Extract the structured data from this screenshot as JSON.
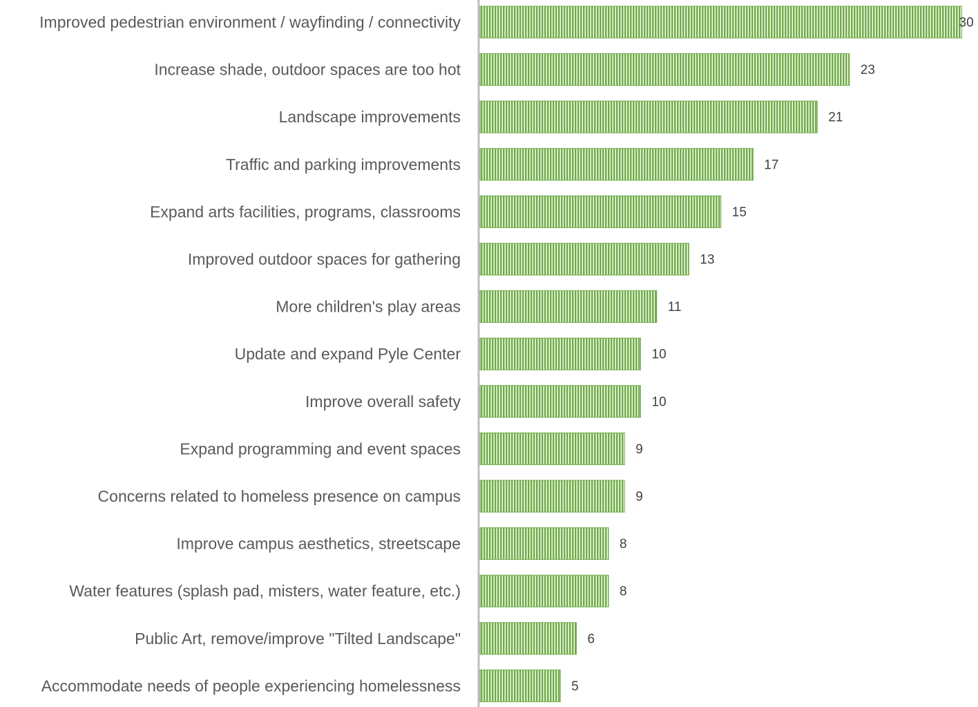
{
  "chart_data": {
    "type": "bar",
    "orientation": "horizontal",
    "title": "",
    "xlabel": "",
    "ylabel": "",
    "xlim": [
      0,
      30
    ],
    "grid": false,
    "legend": "none",
    "bar_color": "#70ad47",
    "bar_pattern": "vertical-stripes",
    "categories": [
      "Improved pedestrian environment / wayfinding / connectivity",
      "Increase shade, outdoor spaces are too hot",
      "Landscape improvements",
      "Traffic and parking improvements",
      "Expand arts facilities, programs, classrooms",
      "Improved outdoor spaces for gathering",
      "More children's play areas",
      "Update and expand Pyle Center",
      "Improve overall safety",
      "Expand programming and event spaces",
      "Concerns related to homeless presence on campus",
      "Improve campus aesthetics, streetscape",
      "Water features (splash pad, misters, water feature, etc.)",
      "Public Art, remove/improve \"Tilted Landscape\"",
      "Accommodate needs of people experiencing homelessness"
    ],
    "values": [
      30,
      23,
      21,
      17,
      15,
      13,
      11,
      10,
      10,
      9,
      9,
      8,
      8,
      6,
      5
    ]
  }
}
